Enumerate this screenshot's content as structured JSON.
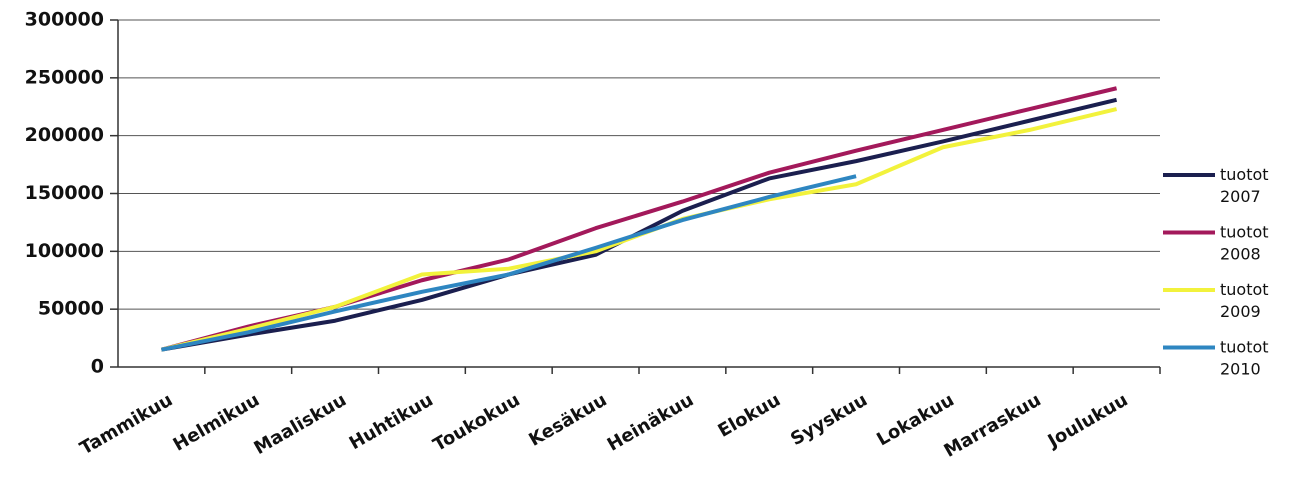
{
  "chart_data": {
    "type": "line",
    "categories": [
      "Tammikuu",
      "Helmikuu",
      "Maaliskuu",
      "Huhtikuu",
      "Toukokuu",
      "Kesäkuu",
      "Heinäkuu",
      "Elokuu",
      "Syyskuu",
      "Lokakuu",
      "Marraskuu",
      "Joulukuu"
    ],
    "series": [
      {
        "name": "tuotot 2007",
        "color": "#1b1f4f",
        "values": [
          15000,
          28000,
          40000,
          58000,
          80000,
          97000,
          135000,
          163000,
          178000,
          195000,
          213000,
          231000
        ]
      },
      {
        "name": "tuotot 2008",
        "color": "#a3195b",
        "values": [
          15000,
          35000,
          52000,
          75000,
          93000,
          120000,
          143000,
          168000,
          187000,
          205000,
          223000,
          241000
        ]
      },
      {
        "name": "tuotot 2009",
        "color": "#f2f23c",
        "values": [
          15000,
          33000,
          52000,
          80000,
          85000,
          100000,
          128000,
          145000,
          158000,
          190000,
          205000,
          223000
        ]
      },
      {
        "name": "tuotot 2010",
        "color": "#2e86c1",
        "values": [
          15000,
          30000,
          48000,
          65000,
          80000,
          103000,
          127000,
          147000,
          165000,
          null,
          null,
          null
        ]
      }
    ],
    "ylim": [
      0,
      300000
    ],
    "yticks": [
      0,
      50000,
      100000,
      150000,
      200000,
      250000,
      300000
    ],
    "grid": true,
    "legend": "right"
  }
}
